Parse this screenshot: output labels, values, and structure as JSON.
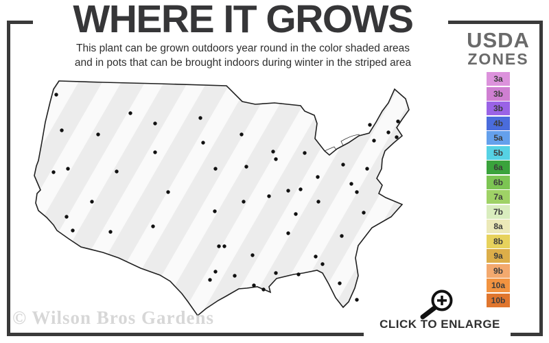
{
  "title": "WHERE IT GROWS",
  "subtitle": {
    "line1": "This plant can be grown outdoors year round in the color shaded areas",
    "line2": "and in pots that can be brought indoors during winter in the striped area"
  },
  "legend": {
    "title_top": "USDA",
    "title_bottom": "ZONES",
    "zones": [
      {
        "label": "3a",
        "color": "#dc92dc"
      },
      {
        "label": "3b",
        "color": "#cf7fd2"
      },
      {
        "label": "3b",
        "color": "#9a63e6"
      },
      {
        "label": "4b",
        "color": "#4a6cdc"
      },
      {
        "label": "5a",
        "color": "#64a0ec"
      },
      {
        "label": "5b",
        "color": "#56d2e4"
      },
      {
        "label": "6a",
        "color": "#3aa33c"
      },
      {
        "label": "6b",
        "color": "#7cc553"
      },
      {
        "label": "7a",
        "color": "#9fd266"
      },
      {
        "label": "7b",
        "color": "#d9edbe"
      },
      {
        "label": "8a",
        "color": "#ece9b8"
      },
      {
        "label": "8b",
        "color": "#e7d25c"
      },
      {
        "label": "9a",
        "color": "#dcae49"
      },
      {
        "label": "9b",
        "color": "#f3a96e"
      },
      {
        "label": "10a",
        "color": "#f29340"
      },
      {
        "label": "10b",
        "color": "#e0762e"
      }
    ]
  },
  "watermark": "© Wilson Bros Gardens",
  "enlarge_label": "CLICK TO ENLARGE",
  "icons": {
    "magnifier": "magnifier-zoom-plus-icon"
  },
  "map_colors": {
    "striped_area": "#ececec",
    "stripe_highlight": "#fafafa",
    "outline": "#1f1f1f",
    "city_dot": "#111111",
    "frame": "#3a3a3a"
  }
}
